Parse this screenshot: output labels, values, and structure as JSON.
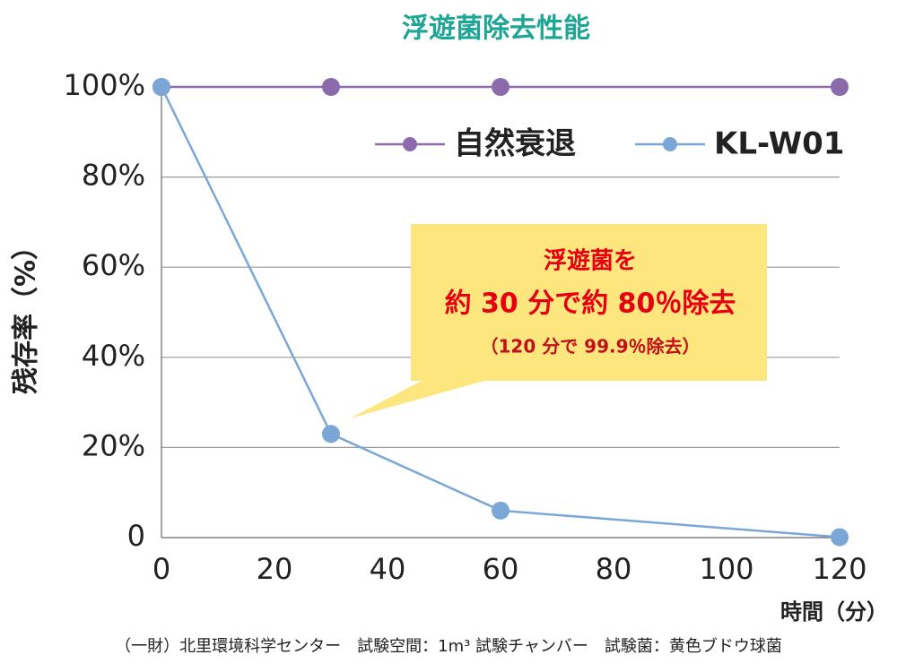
{
  "chart_data": {
    "type": "line",
    "title": "浮遊菌除去性能",
    "x_label": "時間（分）",
    "y_label": "残存率（%）",
    "x": [
      0,
      30,
      60,
      120
    ],
    "series": [
      {
        "name": "自然衰退",
        "color": "#8b6bab",
        "values": [
          100,
          100,
          100,
          100
        ]
      },
      {
        "name": "KL-W01",
        "color": "#7aa7d6",
        "values": [
          100,
          23,
          6,
          0.1
        ]
      }
    ],
    "xlim": [
      0,
      120
    ],
    "xticks": [
      0,
      20,
      40,
      60,
      80,
      100,
      120
    ],
    "ylim": [
      0,
      100
    ],
    "yticks": [
      0,
      {
        "value": 20,
        "label": "20%"
      },
      {
        "value": 40,
        "label": "40%"
      },
      {
        "value": 60,
        "label": "60%"
      },
      {
        "value": 80,
        "label": "80%"
      },
      {
        "value": 100,
        "label": "100%"
      }
    ],
    "grid": true,
    "legend": "upper right",
    "annotations": [
      "浮遊菌を",
      "約 30 分で約 80％除去",
      "（120 分で 99.9％除去）"
    ],
    "footnote": "（一財）北里環境科学センター　試験空間：1m³ 試験チャンバー　試験菌：黄色ブドウ球菌"
  }
}
